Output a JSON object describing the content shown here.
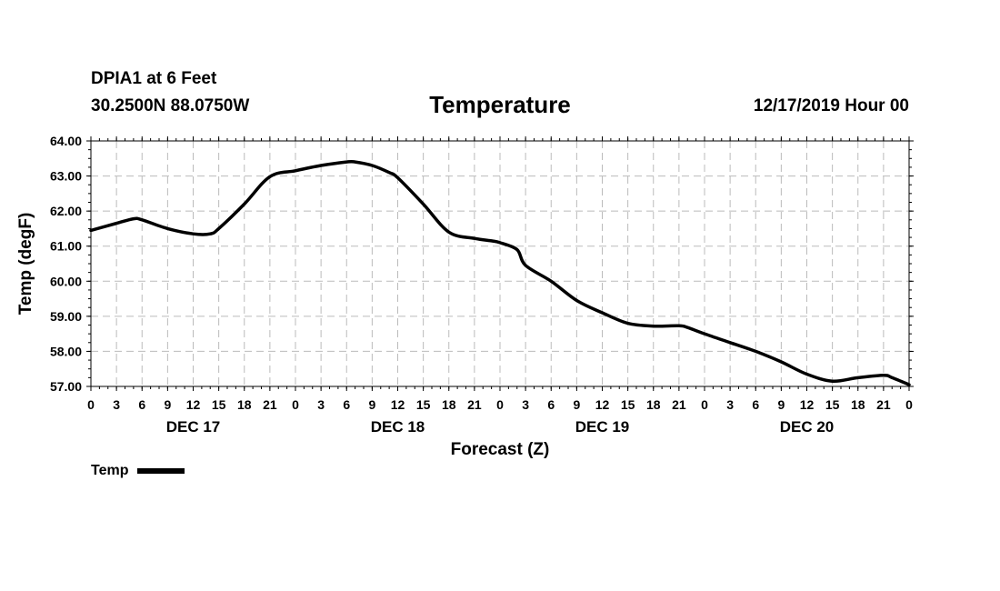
{
  "header": {
    "station": "DPIA1 at 6 Feet",
    "coords": "30.2500N 88.0750W",
    "title": "Temperature",
    "run": "12/17/2019 Hour 00"
  },
  "legend": {
    "label": "Temp"
  },
  "colors": {
    "line": "#000000",
    "grid": "#bbbbbb"
  },
  "chart_data": {
    "type": "line",
    "title": "Temperature",
    "xlabel": "Forecast (Z)",
    "ylabel": "Temp (degF)",
    "ylim": [
      57.0,
      64.0
    ],
    "yticks": [
      "57.00",
      "58.00",
      "59.00",
      "60.00",
      "61.00",
      "62.00",
      "63.00",
      "64.00"
    ],
    "xlim_hours": [
      0,
      96
    ],
    "xtick_step_hours": 3,
    "xtick_labels": [
      "0",
      "3",
      "6",
      "9",
      "12",
      "15",
      "18",
      "21",
      "0",
      "3",
      "6",
      "9",
      "12",
      "15",
      "18",
      "21",
      "0",
      "3",
      "6",
      "9",
      "12",
      "15",
      "18",
      "21",
      "0",
      "3",
      "6",
      "9",
      "12",
      "15",
      "18",
      "21",
      "0"
    ],
    "day_labels": [
      "DEC 17",
      "DEC 18",
      "DEC 19",
      "DEC 20"
    ],
    "series": [
      {
        "name": "Temp",
        "x_hours": [
          0,
          3,
          5,
          6,
          9,
          12,
          14,
          15,
          18,
          21,
          24,
          27,
          30,
          31,
          33,
          35,
          36,
          39,
          42,
          45,
          47,
          48,
          50,
          51,
          54,
          57,
          60,
          63,
          66,
          69,
          70,
          72,
          75,
          78,
          81,
          84,
          87,
          90,
          93,
          94,
          96
        ],
        "values": [
          61.45,
          61.65,
          61.78,
          61.75,
          61.5,
          61.35,
          61.35,
          61.5,
          62.2,
          62.98,
          63.15,
          63.3,
          63.4,
          63.4,
          63.3,
          63.1,
          62.95,
          62.2,
          61.4,
          61.22,
          61.15,
          61.1,
          60.9,
          60.45,
          60.0,
          59.45,
          59.1,
          58.8,
          58.72,
          58.73,
          58.68,
          58.5,
          58.25,
          58.0,
          57.7,
          57.35,
          57.15,
          57.25,
          57.32,
          57.25,
          57.05
        ]
      }
    ]
  }
}
